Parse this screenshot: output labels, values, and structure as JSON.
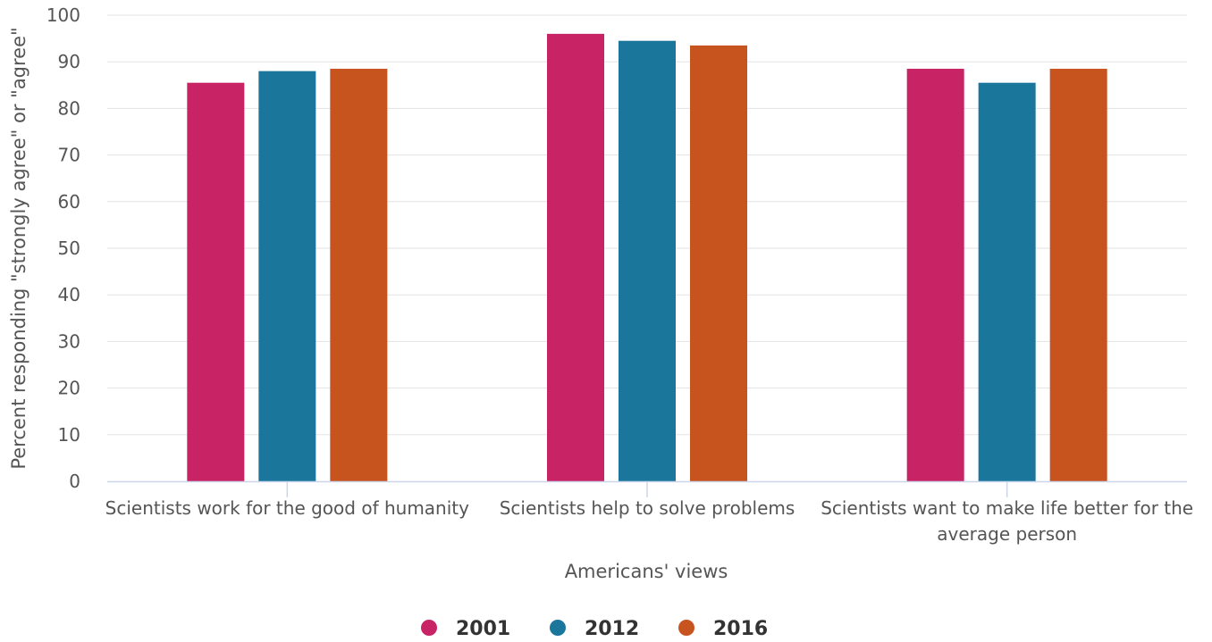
{
  "chart_data": {
    "type": "bar",
    "title": "",
    "xlabel": "Americans' views",
    "ylabel": "Percent responding \"strongly agree\" or \"agree\"",
    "ylim": [
      0,
      100
    ],
    "yticks": [
      0,
      10,
      20,
      30,
      40,
      50,
      60,
      70,
      80,
      90,
      100
    ],
    "grid": true,
    "legend_position": "bottom-center",
    "categories": [
      [
        "Scientists work for the good of humanity"
      ],
      [
        "Scientists help to solve problems"
      ],
      [
        "Scientists want to make life better for the",
        "average person"
      ]
    ],
    "series": [
      {
        "name": "2001",
        "color": "#c72365",
        "values": [
          85.5,
          96,
          88.5
        ]
      },
      {
        "name": "2012",
        "color": "#1b769c",
        "values": [
          88,
          94.5,
          85.5
        ]
      },
      {
        "name": "2016",
        "color": "#c7531f",
        "values": [
          88.5,
          93.5,
          88.5
        ]
      }
    ]
  }
}
